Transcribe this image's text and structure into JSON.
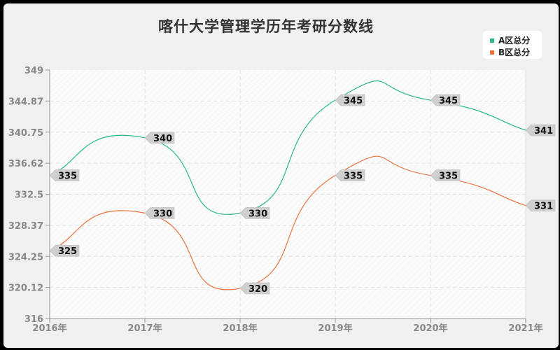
{
  "title": "喀什大学管理学历年考研分数线",
  "legend": [
    {
      "label": "A区总分",
      "color": "#2bb98a"
    },
    {
      "label": "B区总分",
      "color": "#e8733f"
    }
  ],
  "chart_data": {
    "type": "line",
    "title": "喀什大学管理学历年考研分数线",
    "categories": [
      "2016年",
      "2017年",
      "2018年",
      "2019年",
      "2020年",
      "2021年"
    ],
    "series": [
      {
        "name": "A区总分",
        "values": [
          335,
          340,
          330,
          345,
          345,
          341
        ],
        "color": "#2bb98a"
      },
      {
        "name": "B区总分",
        "values": [
          325,
          330,
          320,
          335,
          335,
          331
        ],
        "color": "#e8733f"
      }
    ],
    "yticks": [
      "349",
      "344.87",
      "340.75",
      "336.62",
      "332.5",
      "328.37",
      "324.25",
      "320.12",
      "316"
    ],
    "ylim": [
      316,
      349
    ],
    "xlabel": "",
    "ylabel": "",
    "grid": true,
    "legend_position": "top-right",
    "smooth": true
  }
}
